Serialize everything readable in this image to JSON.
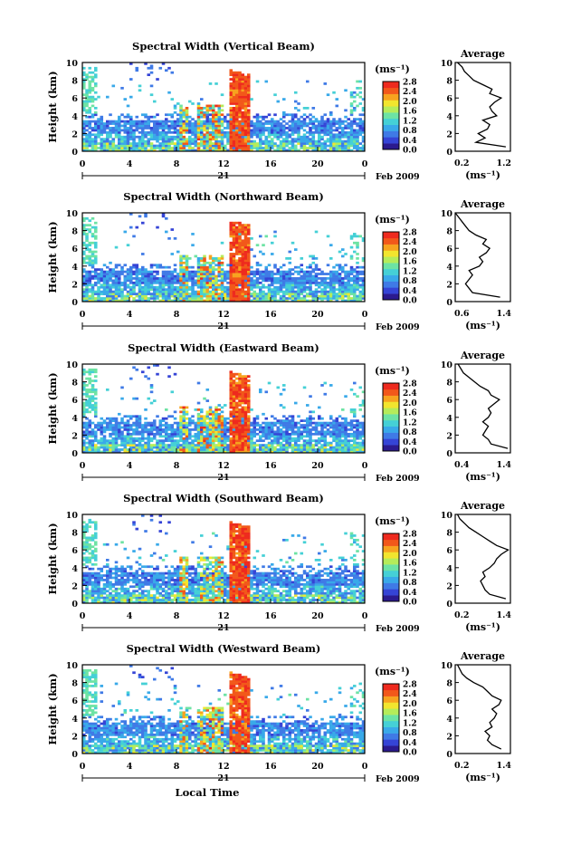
{
  "figure": {
    "x_axis_title": "Local Time",
    "date_label": "Feb 2009",
    "day_label": "21",
    "y_axis_title": "Height (km)",
    "unit_label": "(ms⁻¹)",
    "colorbar_ticks": [
      "0.0",
      "0.4",
      "0.8",
      "1.2",
      "1.6",
      "2.0",
      "2.4",
      "2.8"
    ],
    "x_ticks": [
      "0",
      "4",
      "8",
      "12",
      "16",
      "20",
      "0"
    ],
    "y_ticks": [
      "0",
      "2",
      "4",
      "6",
      "8",
      "10"
    ],
    "colors": {
      "palette": [
        "#2b1a8f",
        "#3544d6",
        "#3f7ae6",
        "#39a9e9",
        "#45d0d6",
        "#6de3a4",
        "#b5ec5a",
        "#f2e52e",
        "#f7a31f",
        "#f2581a",
        "#ee2a1e"
      ]
    }
  },
  "chart_data": [
    {
      "type": "heatmap",
      "title": "Spectral Width (Vertical Beam)",
      "xlabel": "Local Time",
      "ylabel": "Height (km)",
      "xlim": [
        0,
        24
      ],
      "ylim": [
        0,
        10
      ],
      "colorbar": {
        "label": "(ms⁻¹)",
        "range": [
          0.0,
          2.8
        ]
      },
      "profile": {
        "title": "Average",
        "xlabel": "(ms⁻¹)",
        "xlim": [
          0.2,
          1.4
        ],
        "xticks": [
          "0.2",
          "1.2"
        ],
        "height": [
          0.5,
          1,
          1.5,
          2,
          2.5,
          3,
          3.5,
          4,
          4.5,
          5,
          5.5,
          6,
          6.5,
          7,
          7.5,
          8,
          8.5,
          9,
          9.5,
          10
        ],
        "values": [
          1.3,
          0.65,
          0.85,
          0.7,
          0.9,
          0.95,
          0.8,
          1.1,
          1.0,
          0.95,
          1.05,
          1.2,
          0.95,
          1.0,
          0.8,
          0.6,
          0.5,
          0.4,
          0.35,
          0.25
        ]
      }
    },
    {
      "type": "heatmap",
      "title": "Spectral Width (Northward Beam)",
      "xlabel": "Local Time",
      "ylabel": "Height (km)",
      "xlim": [
        0,
        24
      ],
      "ylim": [
        0,
        10
      ],
      "colorbar": {
        "label": "(ms⁻¹)",
        "range": [
          0.0,
          2.8
        ]
      },
      "profile": {
        "title": "Average",
        "xlabel": "(ms⁻¹)",
        "xlim": [
          0.6,
          1.4
        ],
        "xticks": [
          "0.6",
          "1.4"
        ],
        "height": [
          0.5,
          1,
          1.5,
          2,
          2.5,
          3,
          3.5,
          4,
          4.5,
          5,
          5.5,
          6,
          6.5,
          7,
          7.5,
          8,
          8.5,
          9,
          9.5,
          10
        ],
        "values": [
          1.25,
          0.85,
          0.8,
          0.75,
          0.8,
          0.85,
          0.8,
          0.95,
          1.0,
          0.95,
          1.05,
          1.1,
          1.0,
          1.05,
          0.9,
          0.8,
          0.75,
          0.7,
          0.65,
          0.6
        ]
      }
    },
    {
      "type": "heatmap",
      "title": "Spectral Width (Eastward Beam)",
      "xlabel": "Local Time",
      "ylabel": "Height (km)",
      "xlim": [
        0,
        24
      ],
      "ylim": [
        0,
        10
      ],
      "colorbar": {
        "label": "(ms⁻¹)",
        "range": [
          0.0,
          2.8
        ]
      },
      "profile": {
        "title": "Average",
        "xlabel": "(ms⁻¹)",
        "xlim": [
          0.4,
          1.4
        ],
        "xticks": [
          "0.4",
          "1.4"
        ],
        "height": [
          0.5,
          1,
          1.5,
          2,
          2.5,
          3,
          3.5,
          4,
          4.5,
          5,
          5.5,
          6,
          6.5,
          7,
          7.5,
          8,
          8.5,
          9,
          9.5,
          10
        ],
        "values": [
          1.35,
          1.05,
          1.0,
          0.9,
          0.95,
          1.0,
          0.9,
          1.0,
          1.05,
          1.0,
          1.1,
          1.2,
          1.05,
          1.0,
          0.85,
          0.75,
          0.65,
          0.55,
          0.5,
          0.45
        ]
      }
    },
    {
      "type": "heatmap",
      "title": "Spectral Width (Southward Beam)",
      "xlabel": "Local Time",
      "ylabel": "Height (km)",
      "xlim": [
        0,
        24
      ],
      "ylim": [
        0,
        10
      ],
      "colorbar": {
        "label": "(ms⁻¹)",
        "range": [
          0.0,
          2.8
        ]
      },
      "profile": {
        "title": "Average",
        "xlabel": "(ms⁻¹)",
        "xlim": [
          0.2,
          1.4
        ],
        "xticks": [
          "0.2",
          "1.4"
        ],
        "height": [
          0.5,
          1,
          1.5,
          2,
          2.5,
          3,
          3.5,
          4,
          4.5,
          5,
          5.5,
          6,
          6.5,
          7,
          7.5,
          8,
          8.5,
          9,
          9.5,
          10
        ],
        "values": [
          1.3,
          0.95,
          0.85,
          0.8,
          0.75,
          0.85,
          0.8,
          0.95,
          1.05,
          1.1,
          1.2,
          1.35,
          1.1,
          0.95,
          0.8,
          0.65,
          0.5,
          0.4,
          0.3,
          0.25
        ]
      }
    },
    {
      "type": "heatmap",
      "title": "Spectral Width (Westward Beam)",
      "xlabel": "Local Time",
      "ylabel": "Height (km)",
      "xlim": [
        0,
        24
      ],
      "ylim": [
        0,
        10
      ],
      "colorbar": {
        "label": "(ms⁻¹)",
        "range": [
          0.0,
          2.8
        ]
      },
      "profile": {
        "title": "Average",
        "xlabel": "(ms⁻¹)",
        "xlim": [
          0.2,
          1.4
        ],
        "xticks": [
          "0.2",
          "1.4"
        ],
        "height": [
          0.5,
          1,
          1.5,
          2,
          2.5,
          3,
          3.5,
          4,
          4.5,
          5,
          5.5,
          6,
          6.5,
          7,
          7.5,
          8,
          8.5,
          9,
          9.5,
          10
        ],
        "values": [
          1.2,
          1.0,
          0.9,
          0.95,
          0.85,
          1.0,
          0.95,
          1.05,
          1.1,
          1.0,
          1.15,
          1.2,
          1.0,
          0.9,
          0.8,
          0.6,
          0.45,
          0.35,
          0.3,
          0.25
        ]
      }
    }
  ]
}
